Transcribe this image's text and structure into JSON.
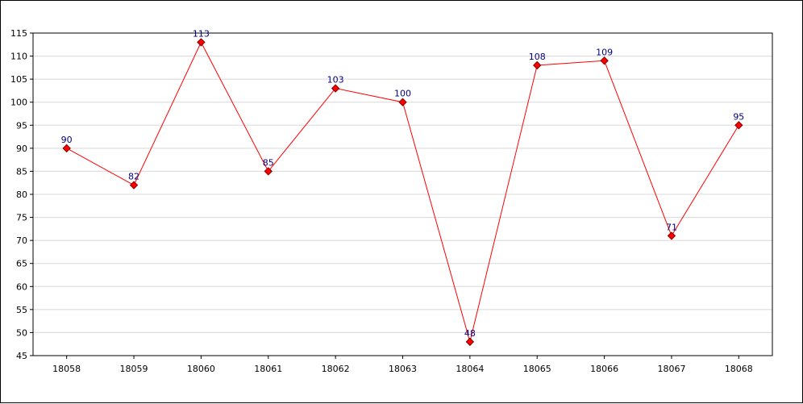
{
  "chart_data": {
    "type": "line",
    "title": "",
    "xlabel": "",
    "ylabel": "",
    "categories": [
      "18058",
      "18059",
      "18060",
      "18061",
      "18062",
      "18063",
      "18064",
      "18065",
      "18066",
      "18067",
      "18068"
    ],
    "series": [
      {
        "values": [
          90,
          82,
          113,
          85,
          103,
          100,
          48,
          108,
          109,
          71,
          95
        ]
      }
    ],
    "ylim": [
      45,
      115
    ],
    "yticks": [
      45,
      50,
      55,
      60,
      65,
      70,
      75,
      80,
      85,
      90,
      95,
      100,
      105,
      110,
      115
    ],
    "grid": true,
    "legend": "none",
    "colors": {
      "line": "#ff0000",
      "marker_fill": "#ff0000",
      "marker_stroke": "#800000",
      "data_label": "#000080",
      "grid": "#d8d8d8"
    }
  }
}
